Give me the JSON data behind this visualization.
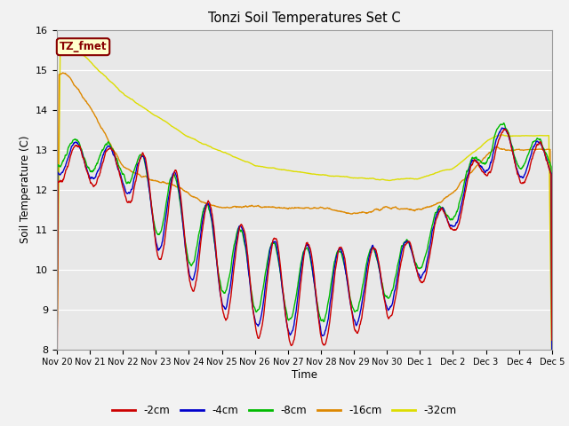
{
  "title": "Tonzi Soil Temperatures Set C",
  "xlabel": "Time",
  "ylabel": "Soil Temperature (C)",
  "ylim": [
    8.0,
    16.0
  ],
  "yticks": [
    8.0,
    9.0,
    10.0,
    11.0,
    12.0,
    13.0,
    14.0,
    15.0,
    16.0
  ],
  "colors": {
    "-2cm": "#cc0000",
    "-4cm": "#0000cc",
    "-8cm": "#00bb00",
    "-16cm": "#dd8800",
    "-32cm": "#dddd00"
  },
  "legend_label": "TZ_fmet",
  "legend_box_bg": "#ffffcc",
  "legend_box_border": "#880000",
  "bg_color": "#e8e8e8",
  "line_width": 1.0,
  "xtick_labels": [
    "Nov 20",
    "Nov 21",
    "Nov 22",
    "Nov 23",
    "Nov 24",
    "Nov 25",
    "Nov 26",
    "Nov 27",
    "Nov 28",
    "Nov 29",
    "Nov 30",
    "Dec 1",
    "Dec 2",
    "Dec 3",
    "Dec 4",
    "Dec 5"
  ]
}
